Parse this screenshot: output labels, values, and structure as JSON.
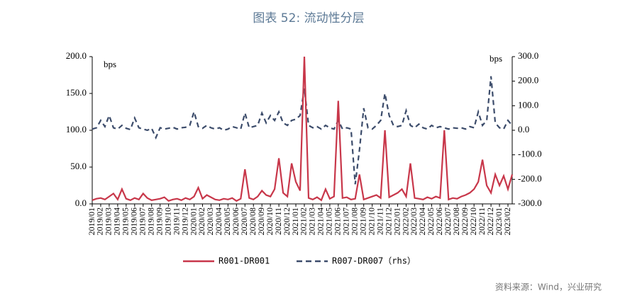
{
  "chart_data": {
    "type": "line",
    "title": "图表 52: 流动性分层",
    "y_unit": "bps",
    "y2_unit": "bps",
    "source": "资料来源：Wind，兴业研究",
    "categories": [
      "2019/01",
      null,
      "2019/02",
      null,
      "2019/03",
      null,
      "2019/04",
      null,
      "2019/05",
      null,
      "2019/06",
      null,
      "2019/07",
      null,
      "2019/08",
      null,
      "2019/09",
      null,
      "2019/10",
      null,
      "2019/11",
      null,
      "2019/12",
      null,
      "2020/01",
      null,
      "2020/02",
      null,
      "2020/03",
      null,
      "2020/04",
      null,
      "2020/05",
      null,
      "2020/06",
      null,
      "2020/07",
      null,
      "2020/08",
      null,
      "2020/09",
      null,
      "2020/10",
      null,
      "2020/11",
      null,
      "2020/12",
      null,
      "2021/01",
      null,
      "2021/02",
      null,
      "2021/03",
      null,
      "2021/04",
      null,
      "2021/05",
      null,
      "2021/06",
      null,
      "2021/07",
      null,
      "2021/08",
      null,
      "2021/09",
      null,
      "2021/10",
      null,
      "2021/11",
      null,
      "2021/12",
      null,
      "2022/01",
      null,
      "2022/02",
      null,
      "2022/03",
      null,
      "2022/04",
      null,
      "2022/05",
      null,
      "2022/06",
      null,
      "2022/07",
      null,
      "2022/08",
      null,
      "2022/09",
      null,
      "2022/10",
      null,
      "2022/11",
      null,
      "2022/12",
      null,
      "2023/01",
      null,
      "2023/02",
      null
    ],
    "series": [
      {
        "name": "R001-DR001",
        "color": "#c8374a",
        "line_style": "solid",
        "values": [
          5,
          7,
          8,
          6,
          10,
          14,
          6,
          20,
          7,
          5,
          8,
          6,
          14,
          8,
          5,
          6,
          7,
          9,
          4,
          6,
          7,
          5,
          8,
          6,
          10,
          22,
          7,
          12,
          9,
          6,
          5,
          7,
          6,
          8,
          4,
          7,
          47,
          8,
          6,
          10,
          18,
          12,
          10,
          20,
          62,
          15,
          10,
          55,
          30,
          18,
          200,
          8,
          6,
          9,
          5,
          20,
          7,
          10,
          140,
          8,
          9,
          6,
          7,
          40,
          6,
          8,
          10,
          12,
          8,
          100,
          9,
          12,
          15,
          20,
          10,
          55,
          8,
          7,
          6,
          9,
          7,
          10,
          8,
          100,
          6,
          8,
          7,
          10,
          12,
          15,
          20,
          30,
          60,
          25,
          15,
          40,
          25,
          38,
          20,
          40
        ]
      },
      {
        "name": "R007-DR007（rhs）",
        "color": "#3c4c6b",
        "line_style": "dashed",
        "axis": "y2",
        "values": [
          5,
          10,
          40,
          15,
          60,
          10,
          5,
          20,
          8,
          3,
          50,
          10,
          5,
          0,
          8,
          -30,
          10,
          5,
          8,
          12,
          5,
          10,
          12,
          20,
          75,
          15,
          8,
          20,
          10,
          5,
          10,
          0,
          5,
          15,
          10,
          5,
          70,
          10,
          15,
          20,
          70,
          30,
          60,
          40,
          75,
          30,
          20,
          40,
          45,
          60,
          170,
          20,
          10,
          15,
          5,
          20,
          10,
          5,
          40,
          5,
          10,
          5,
          -220,
          -80,
          90,
          10,
          5,
          20,
          40,
          150,
          60,
          20,
          15,
          20,
          80,
          20,
          10,
          25,
          10,
          5,
          20,
          10,
          15,
          10,
          5,
          10,
          8,
          10,
          5,
          15,
          10,
          75,
          20,
          40,
          220,
          30,
          10,
          5,
          40,
          20
        ]
      }
    ],
    "ylim": [
      0,
      200
    ],
    "yticks": [
      {
        "value": 0,
        "label": "0.0"
      },
      {
        "value": 50,
        "label": "50.0"
      },
      {
        "value": 100,
        "label": "100.0"
      },
      {
        "value": 150,
        "label": "150.0"
      },
      {
        "value": 200,
        "label": "200.0"
      }
    ],
    "y2lim": [
      -300,
      300
    ],
    "y2ticks": [
      {
        "value": -300,
        "label": "-300.0"
      },
      {
        "value": -200,
        "label": "-200.0"
      },
      {
        "value": -100,
        "label": "-100.0"
      },
      {
        "value": 0,
        "label": "0.0"
      },
      {
        "value": 100,
        "label": "100.0"
      },
      {
        "value": 200,
        "label": "200.0"
      },
      {
        "value": 300,
        "label": "300.0"
      }
    ]
  }
}
